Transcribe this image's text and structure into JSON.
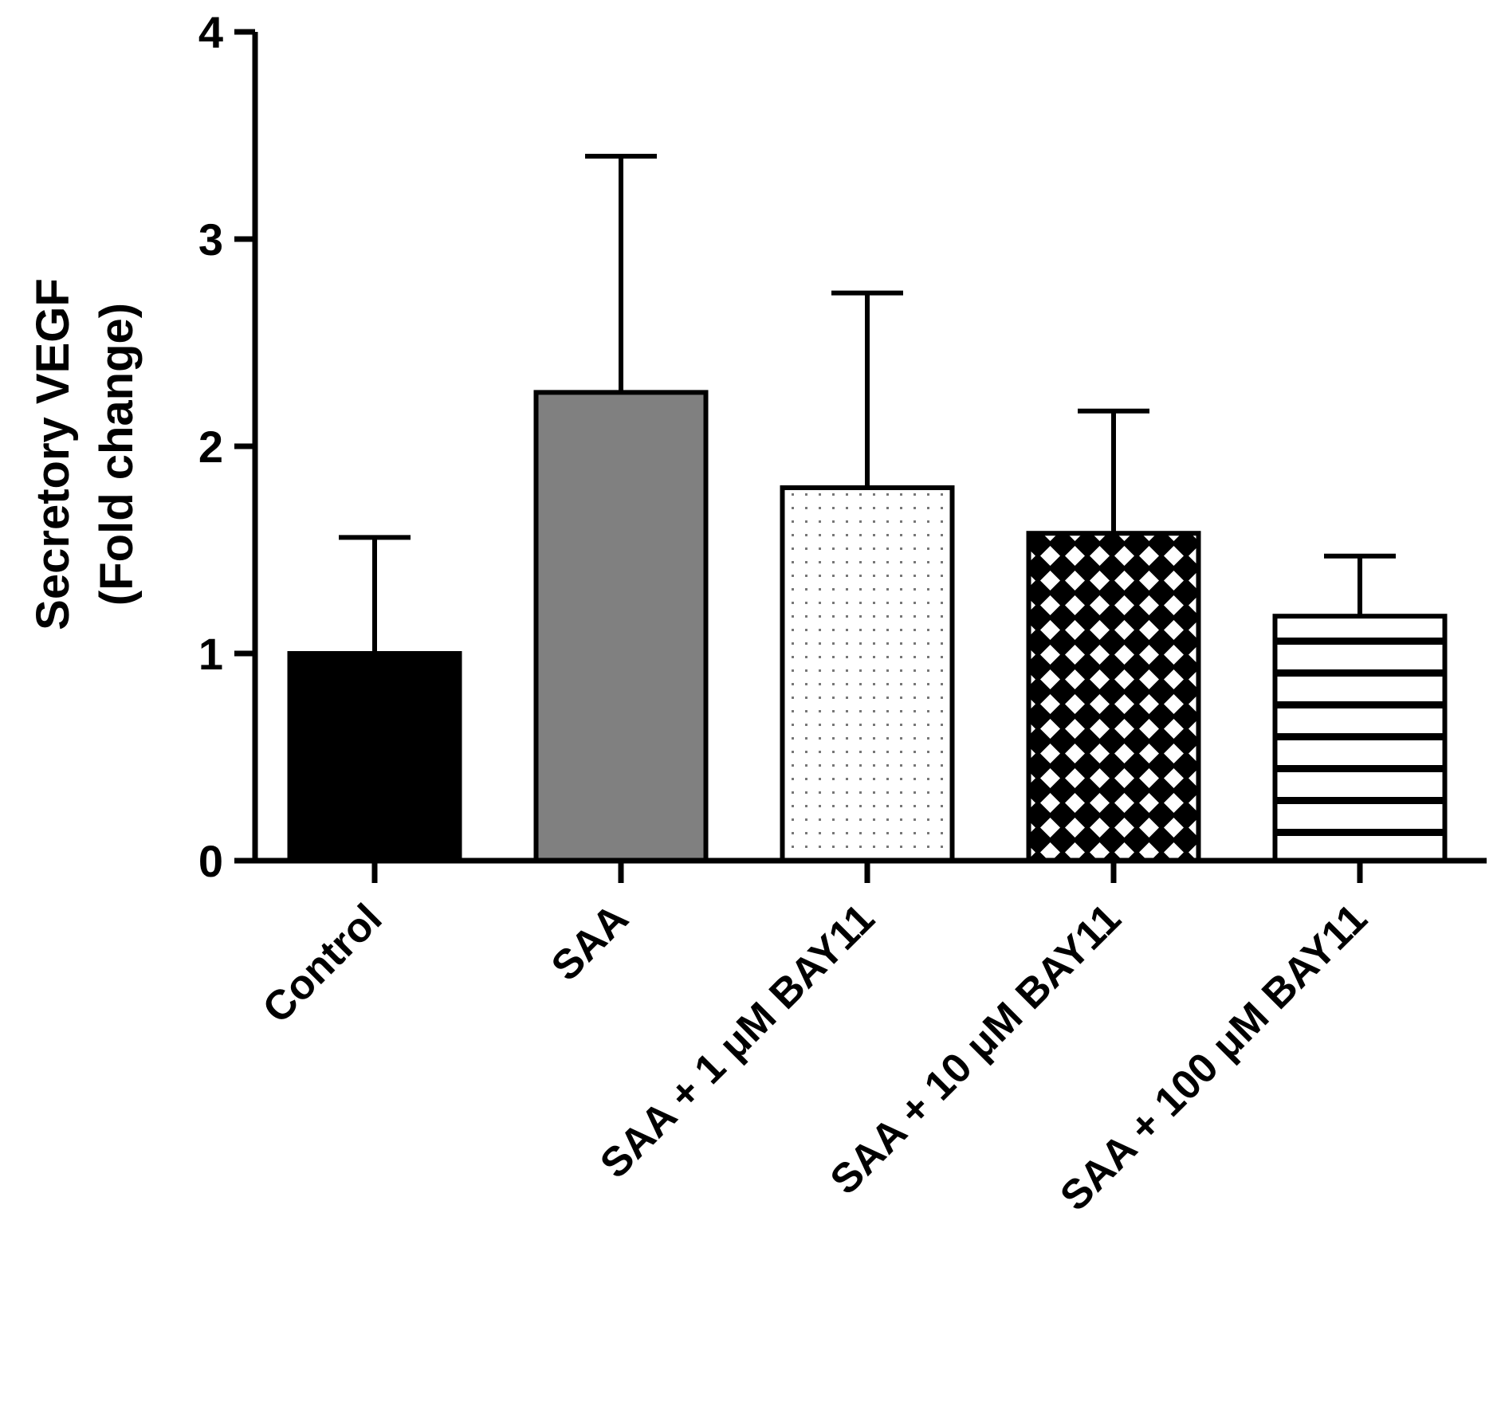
{
  "chart_data": {
    "type": "bar",
    "title": "",
    "xlabel": "",
    "ylabel_lines": [
      "Secretory VEGF",
      "(Fold change)"
    ],
    "ylim": [
      0,
      4
    ],
    "yticks": [
      0,
      1,
      2,
      3,
      4
    ],
    "categories": [
      "Control",
      "SAA",
      "SAA + 1 μM BAY11",
      "SAA + 10 μM BAY11",
      "SAA + 100 μM BAY11"
    ],
    "values": [
      1.0,
      2.26,
      1.8,
      1.58,
      1.18
    ],
    "error_upper": [
      1.56,
      3.4,
      2.74,
      2.17,
      1.47
    ],
    "fills": [
      "solid-black",
      "solid-gray",
      "dots",
      "diamond-crosshatch",
      "horizontal-stripes"
    ],
    "colors": {
      "black": "#000000",
      "gray": "#808080",
      "white": "#ffffff"
    },
    "grid": false,
    "legend": "none"
  }
}
